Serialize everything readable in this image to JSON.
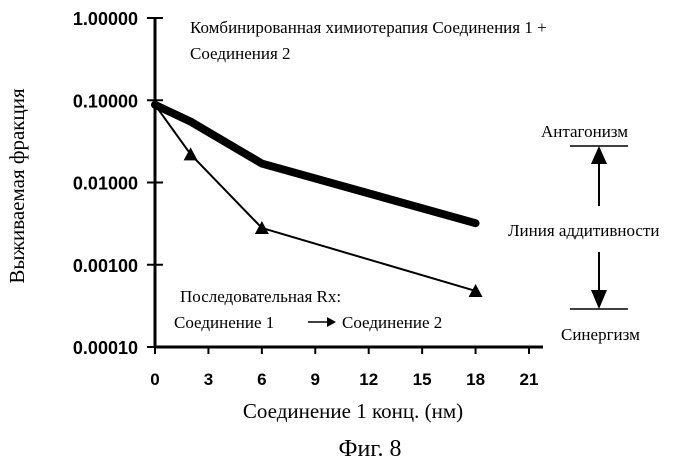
{
  "chart_data": {
    "type": "line",
    "ylabel": "Выживаемая фракция",
    "xlabel": "Соединение 1  конц. (нм)",
    "caption": "Фиг. 8",
    "x_ticks": [
      "0",
      "3",
      "6",
      "9",
      "12",
      "15",
      "18",
      "21"
    ],
    "y_ticks": [
      "1.00000",
      "0.10000",
      "0.01000",
      "0.00100",
      "0.00010"
    ],
    "xlim": [
      0,
      21
    ],
    "ylim": [
      0.0001,
      1
    ],
    "y_scale": "log",
    "series": [
      {
        "label_lines": [
          "Комбинированная химиотерапия  Соединения 1 +",
          "Соединения 2"
        ],
        "style": "thick",
        "x": [
          0,
          2,
          6,
          18
        ],
        "y": [
          0.088,
          0.055,
          0.017,
          0.0032
        ]
      },
      {
        "label_lines": [
          "Последовательная Rx:",
          "Соединение 1",
          "Соединение 2"
        ],
        "style": "thin-triangle",
        "x": [
          0,
          2,
          6,
          18
        ],
        "y": [
          0.088,
          0.022,
          0.0028,
          0.00048
        ]
      }
    ],
    "annotations": {
      "antagonism": "Антагонизм",
      "additivity": "Линия аддитивности",
      "synergism": "Синергизм"
    }
  }
}
